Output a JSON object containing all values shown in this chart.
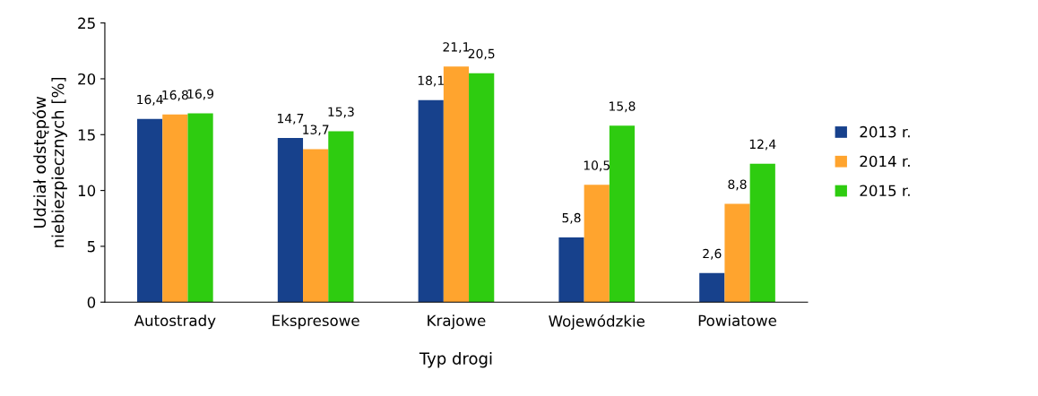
{
  "chart_data": {
    "type": "bar",
    "xlabel": "Typ drogi",
    "ylabel": "Udział odstępów\nniebiezpiecznych [%]",
    "categories": [
      "Autostrady",
      "Ekspresowe",
      "Krajowe",
      "Wojewódzkie",
      "Powiatowe"
    ],
    "series": [
      {
        "name": "2013 r.",
        "color": "#17418c",
        "values": [
          16.4,
          14.7,
          18.1,
          5.8,
          2.6
        ],
        "value_labels": [
          "16,4",
          "14,7",
          "18,1",
          "5,8",
          "2,6"
        ]
      },
      {
        "name": "2014 r.",
        "color": "#ffa42e",
        "values": [
          16.8,
          13.7,
          21.1,
          10.5,
          8.8
        ],
        "value_labels": [
          "16,8",
          "13,7",
          "21,1",
          "10,5",
          "8,8"
        ]
      },
      {
        "name": "2015 r.",
        "color": "#2ecc10",
        "values": [
          16.9,
          15.3,
          20.5,
          15.8,
          12.4
        ],
        "value_labels": [
          "16,9",
          "15,3",
          "20,5",
          "15,8",
          "12,4"
        ]
      }
    ],
    "ylim": [
      0,
      25
    ],
    "yticks": [
      0,
      5,
      10,
      15,
      20,
      25
    ],
    "grid": false,
    "legend": "right"
  }
}
